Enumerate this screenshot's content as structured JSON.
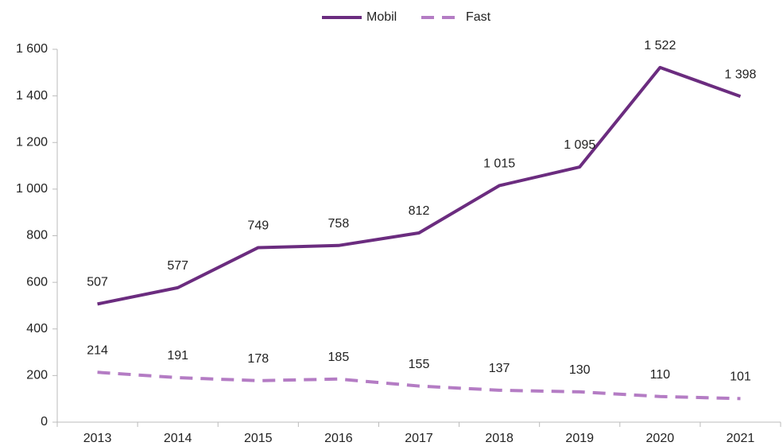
{
  "chart_data": {
    "type": "line",
    "categories": [
      "2013",
      "2014",
      "2015",
      "2016",
      "2017",
      "2018",
      "2019",
      "2020",
      "2021"
    ],
    "series": [
      {
        "name": "Mobil",
        "color": "#6b2c7f",
        "dash": false,
        "values": [
          507,
          577,
          749,
          758,
          812,
          1015,
          1095,
          1522,
          1398
        ],
        "value_labels": [
          "507",
          "577",
          "749",
          "758",
          "812",
          "1 015",
          "1 095",
          "1 522",
          "1 398"
        ]
      },
      {
        "name": "Fast",
        "color": "#b47cc4",
        "dash": true,
        "values": [
          214,
          191,
          178,
          185,
          155,
          137,
          130,
          110,
          101
        ]
      }
    ],
    "ylim": [
      0,
      1600
    ],
    "yticks": [
      0,
      200,
      400,
      600,
      800,
      {
        "value": 1000,
        "label": "1 000"
      },
      {
        "value": 1200,
        "label": "1 200"
      },
      {
        "value": 1400,
        "label": "1 400"
      },
      {
        "value": 1600,
        "label": "1 600"
      }
    ],
    "grid": false,
    "legend": "top"
  }
}
